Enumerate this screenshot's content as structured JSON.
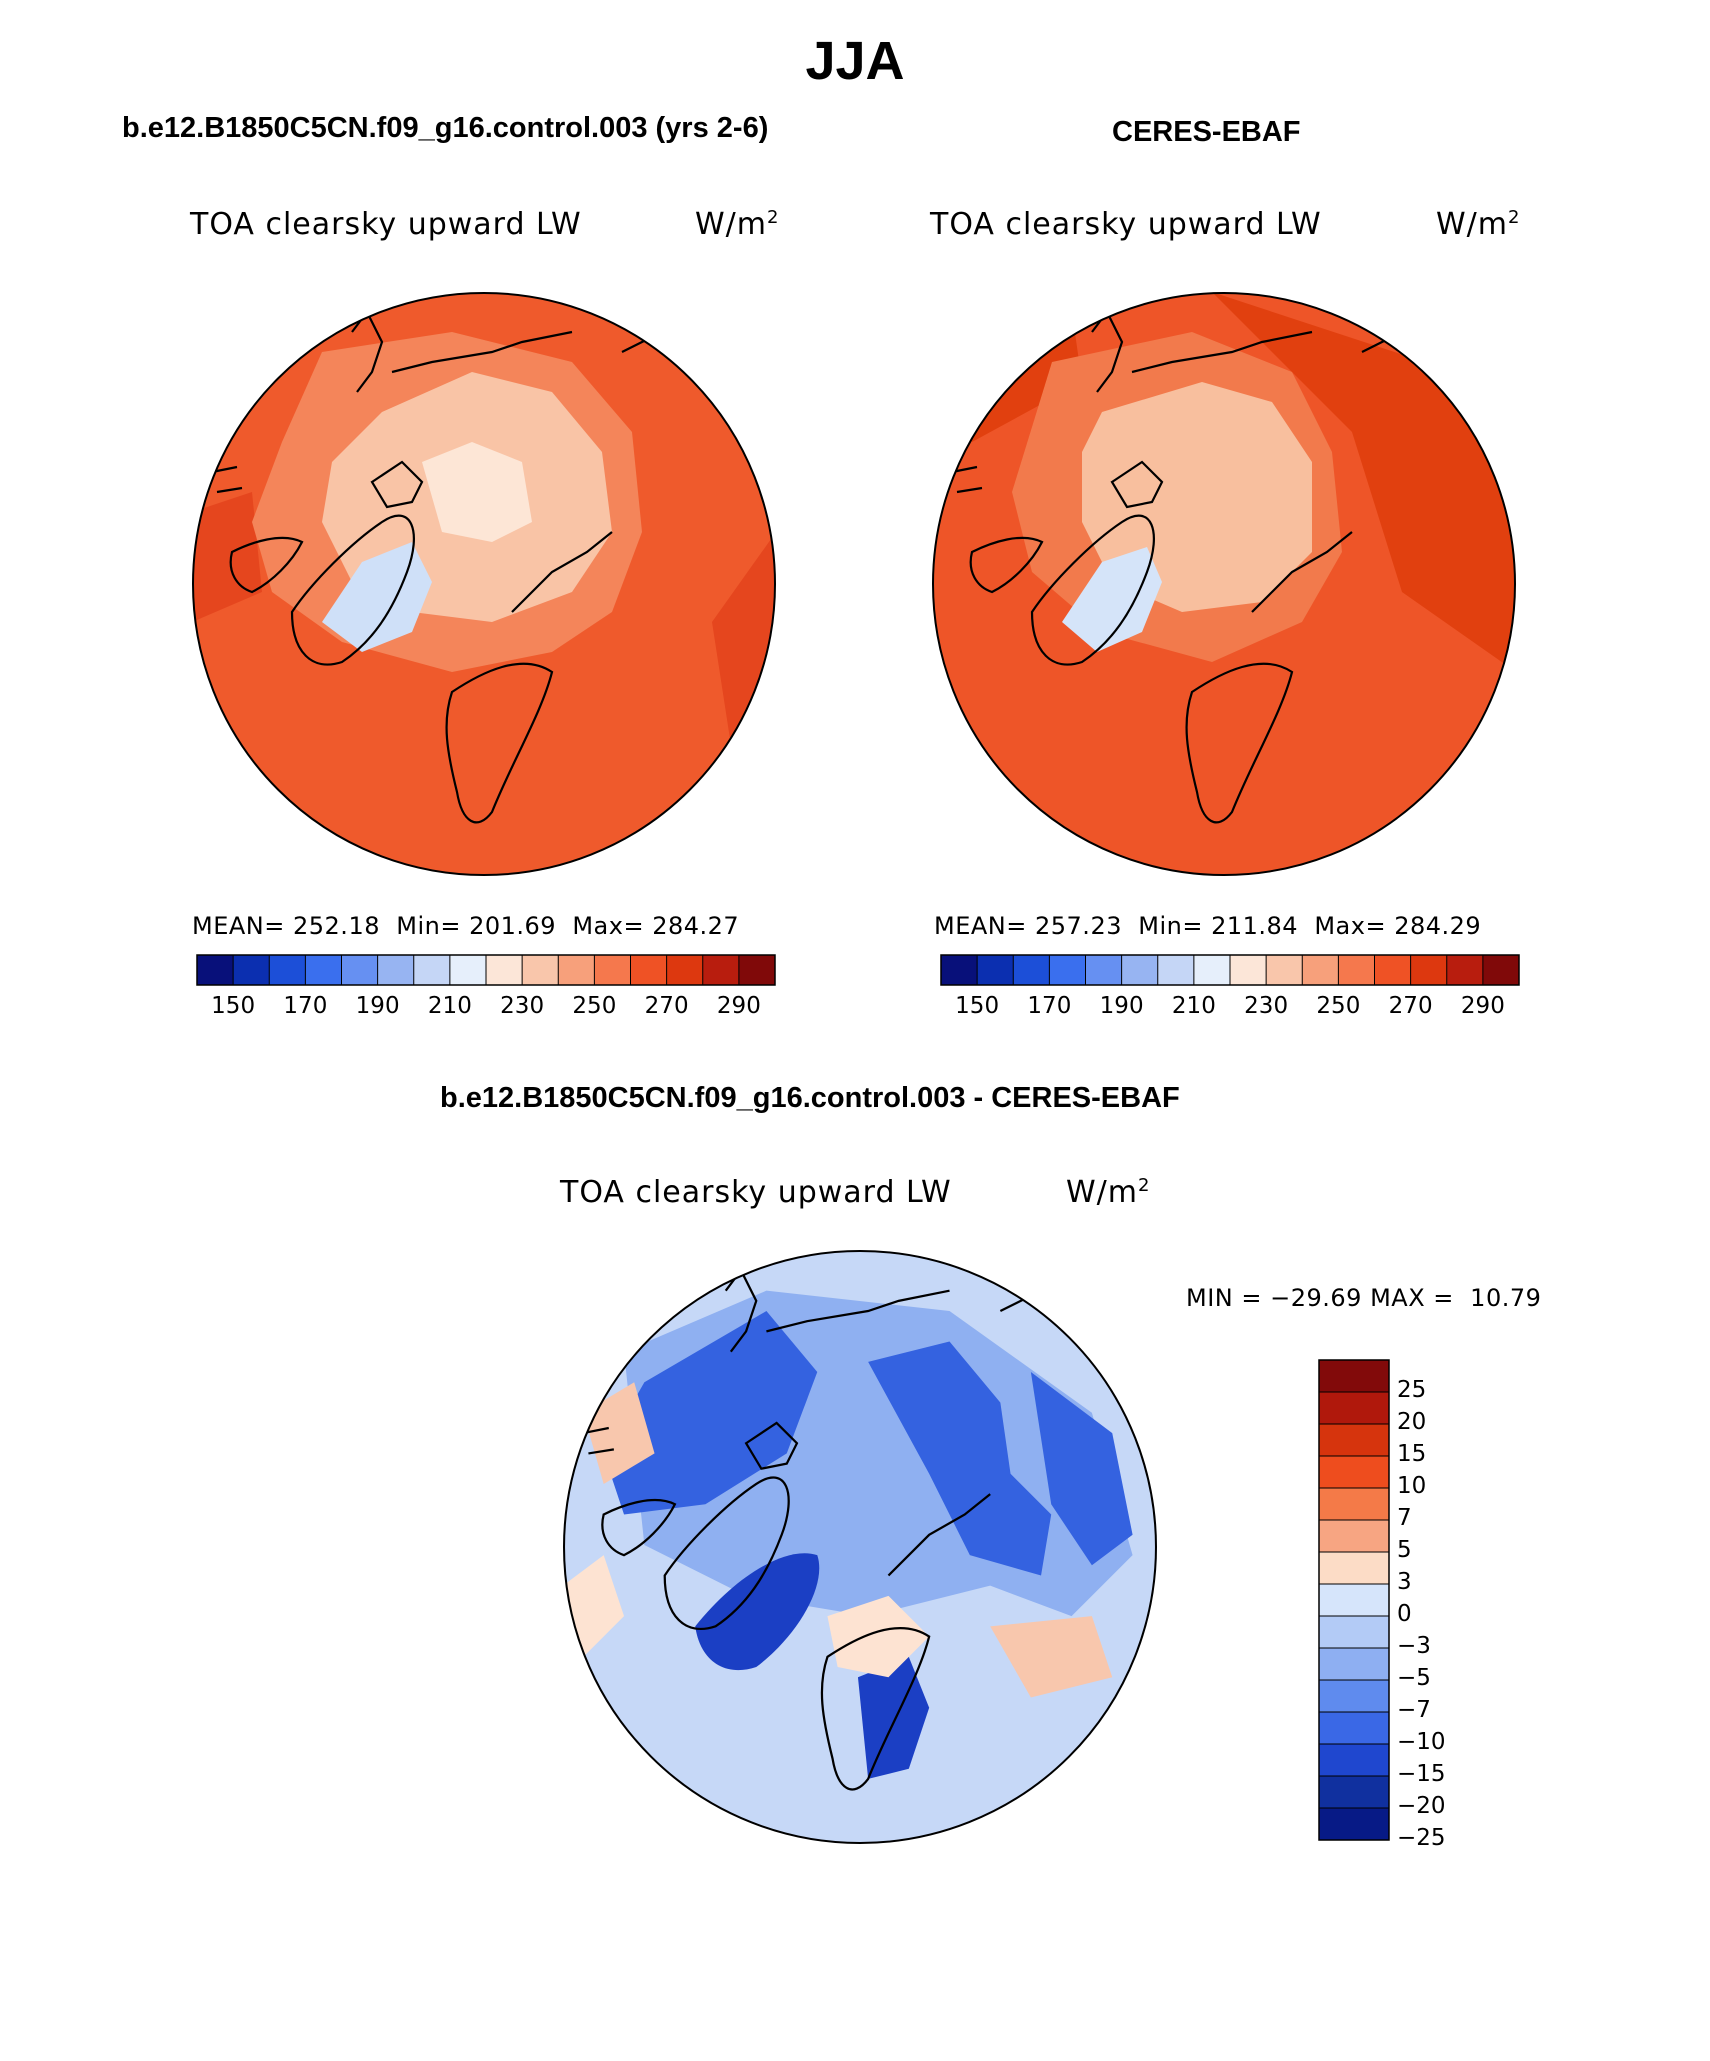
{
  "figure": {
    "season": "JJA",
    "variable": "TOA clearsky upward LW",
    "units_base": "W/m",
    "units_exp": "2"
  },
  "panels": [
    {
      "id": "model",
      "title": "b.e12.B1850C5CN.f09_g16.control.003 (yrs 2-6)",
      "variable": "TOA clearsky upward LW",
      "stats": {
        "mean_label": "MEAN=",
        "mean": "252.18",
        "min_label": "Min=",
        "min": "201.69",
        "max_label": "Max=",
        "max": "284.27"
      }
    },
    {
      "id": "obs",
      "title": "CERES-EBAF",
      "variable": "TOA clearsky upward LW",
      "stats": {
        "mean_label": "MEAN=",
        "mean": "257.23",
        "min_label": "Min=",
        "min": "211.84",
        "max_label": "Max=",
        "max": "284.29"
      }
    },
    {
      "id": "diff",
      "title": "b.e12.B1850C5CN.f09_g16.control.003 - CERES-EBAF",
      "variable": "TOA clearsky upward LW",
      "stats": {
        "min_label": "MIN =",
        "min": "−29.69",
        "max_label": "MAX =",
        "max": "10.79"
      }
    }
  ],
  "abs_colorbar": {
    "colors": [
      "#08107a",
      "#0b2fb0",
      "#1c4fd8",
      "#3a6fee",
      "#6690f2",
      "#97b4f2",
      "#c5d6f6",
      "#e6effb",
      "#fce6d8",
      "#f9c6ab",
      "#f7a07b",
      "#f5784d",
      "#ef5225",
      "#dd380f",
      "#b81d0e",
      "#800909"
    ],
    "tick_labels": [
      "150",
      "170",
      "190",
      "210",
      "230",
      "250",
      "270",
      "290"
    ]
  },
  "diff_colorbar": {
    "colors": [
      "#820a0a",
      "#b0180c",
      "#d6340d",
      "#ee4d1e",
      "#f47a48",
      "#f7a582",
      "#fcdcc6",
      "#d6e5fb",
      "#b3cbf6",
      "#8eaff2",
      "#5f8bee",
      "#3a68e6",
      "#1f47cf",
      "#10309f",
      "#071a86"
    ],
    "tick_labels": [
      "25",
      "20",
      "15",
      "10",
      "7",
      "5",
      "3",
      "0",
      "−3",
      "−5",
      "−7",
      "−10",
      "−15",
      "−20",
      "−25"
    ]
  },
  "map_colors": {
    "model": {
      "ocean": "#ef5a2c",
      "warm": "#e5461e",
      "mid": "#f4855a",
      "light": "#f9c4a6",
      "pale": "#fde6d6",
      "cold": "#cfe0f8"
    },
    "obs": {
      "ocean": "#ee5528",
      "warm": "#e1400f",
      "mid": "#f27a4c",
      "light": "#f8bf9e",
      "pale": "#fde6d6",
      "cold": "#d5e4f9"
    },
    "diff": {
      "base": "#c6d8f7",
      "mid": "#8fb0f1",
      "strong": "#3462e0",
      "deep": "#1b3fc4",
      "warm": "#f8c7ad",
      "pale": "#fde3d2"
    }
  }
}
